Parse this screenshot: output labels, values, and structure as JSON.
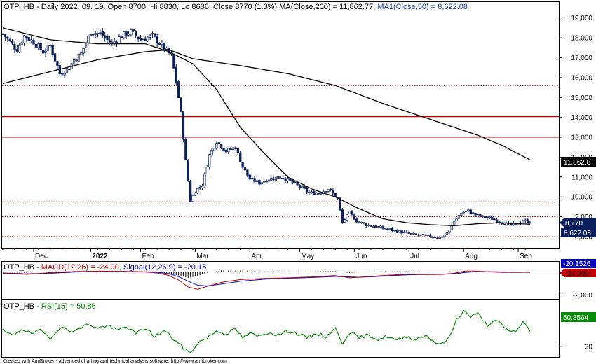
{
  "chart_data": {
    "type": "line",
    "main": {
      "title_prefix": "OTP_HB - Daily 2022. 09. 19. Open 8700, Hi 8830, Lo 8636, Close 8770 (1.3%) ",
      "title_ma200": "MA(Close,200) = 11,862.77, ",
      "title_ma50": "MA1(Close,50) = 8,622.08",
      "y_range": [
        7400,
        19800
      ],
      "y_ticks": [
        {
          "v": 19000,
          "label": "19,000"
        },
        {
          "v": 18000,
          "label": "18,000"
        },
        {
          "v": 17000,
          "label": "17,000"
        },
        {
          "v": 16000,
          "label": "16,000"
        },
        {
          "v": 15000,
          "label": "15,000"
        },
        {
          "v": 14000,
          "label": "14,000"
        },
        {
          "v": 13000,
          "label": "13,000"
        },
        {
          "v": 12000,
          "label": "12,000"
        },
        {
          "v": 11000,
          "label": "11,000"
        },
        {
          "v": 10000,
          "label": "10,000"
        },
        {
          "v": 9000,
          "label": "9,000"
        },
        {
          "v": 8000,
          "label": "8,000"
        }
      ],
      "x_labels": [
        {
          "i": 13,
          "label": "Dec",
          "bold": false
        },
        {
          "i": 37,
          "label": "2022",
          "bold": true
        },
        {
          "i": 58,
          "label": "Feb",
          "bold": false
        },
        {
          "i": 81,
          "label": "Mar",
          "bold": false
        },
        {
          "i": 104,
          "label": "Apr",
          "bold": false
        },
        {
          "i": 125,
          "label": "May",
          "bold": false
        },
        {
          "i": 148,
          "label": "Jun",
          "bold": false
        },
        {
          "i": 171,
          "label": "Jul",
          "bold": false
        },
        {
          "i": 194,
          "label": "Aug",
          "bold": false
        },
        {
          "i": 217,
          "label": "Sep",
          "bold": false
        }
      ],
      "hlines": [
        {
          "v": 15600,
          "style": "dotted"
        },
        {
          "v": 14050,
          "style": "solid-thick"
        },
        {
          "v": 13000,
          "style": "solid"
        },
        {
          "v": 9750,
          "style": "dotted"
        },
        {
          "v": 9000,
          "style": "dotted"
        },
        {
          "v": 8000,
          "style": "dotted"
        }
      ],
      "last_labels": {
        "ma200": "11,862.8",
        "close": "8,770",
        "ma50": "8,622.08"
      },
      "colors": {
        "candle": "#0a1f5c",
        "ma": "#000000",
        "hline": "#c00000"
      },
      "close_anchors": [
        [
          0,
          18200
        ],
        [
          3,
          17800
        ],
        [
          6,
          17400
        ],
        [
          9,
          18100
        ],
        [
          13,
          17800
        ],
        [
          17,
          17300
        ],
        [
          20,
          17600
        ],
        [
          24,
          16200
        ],
        [
          28,
          16500
        ],
        [
          30,
          16900
        ],
        [
          33,
          17200
        ],
        [
          37,
          18300
        ],
        [
          41,
          18200
        ],
        [
          46,
          17700
        ],
        [
          50,
          18100
        ],
        [
          54,
          18300
        ],
        [
          58,
          17900
        ],
        [
          63,
          18100
        ],
        [
          67,
          17600
        ],
        [
          71,
          17100
        ],
        [
          73,
          15800
        ],
        [
          75,
          14200
        ],
        [
          77,
          11800
        ],
        [
          79,
          9800
        ],
        [
          81,
          10300
        ],
        [
          84,
          10600
        ],
        [
          87,
          12100
        ],
        [
          90,
          12800
        ],
        [
          94,
          12300
        ],
        [
          98,
          12500
        ],
        [
          101,
          11500
        ],
        [
          104,
          10900
        ],
        [
          108,
          10700
        ],
        [
          112,
          10900
        ],
        [
          117,
          11000
        ],
        [
          121,
          10800
        ],
        [
          125,
          10500
        ],
        [
          129,
          10200
        ],
        [
          133,
          10200
        ],
        [
          137,
          10400
        ],
        [
          141,
          9900
        ],
        [
          143,
          8700
        ],
        [
          146,
          9200
        ],
        [
          149,
          8800
        ],
        [
          153,
          8600
        ],
        [
          157,
          8500
        ],
        [
          161,
          8400
        ],
        [
          165,
          8300
        ],
        [
          169,
          8200
        ],
        [
          173,
          8100
        ],
        [
          177,
          8050
        ],
        [
          181,
          8000
        ],
        [
          184,
          7950
        ],
        [
          186,
          8100
        ],
        [
          188,
          8300
        ],
        [
          190,
          8800
        ],
        [
          193,
          9200
        ],
        [
          196,
          9300
        ],
        [
          199,
          9100
        ],
        [
          202,
          9000
        ],
        [
          206,
          8900
        ],
        [
          210,
          8700
        ],
        [
          213,
          8600
        ],
        [
          216,
          8600
        ],
        [
          219,
          8800
        ],
        [
          222,
          8770
        ]
      ],
      "ma200_anchors": [
        [
          0,
          15700
        ],
        [
          20,
          16300
        ],
        [
          40,
          16900
        ],
        [
          60,
          17300
        ],
        [
          70,
          17400
        ],
        [
          80,
          16950
        ],
        [
          100,
          16600
        ],
        [
          120,
          16200
        ],
        [
          140,
          15600
        ],
        [
          160,
          14700
        ],
        [
          180,
          13900
        ],
        [
          200,
          13100
        ],
        [
          210,
          12600
        ],
        [
          222,
          11862.77
        ]
      ],
      "ma50_anchors": [
        [
          0,
          18500
        ],
        [
          20,
          17900
        ],
        [
          40,
          17700
        ],
        [
          60,
          17700
        ],
        [
          70,
          17300
        ],
        [
          80,
          16700
        ],
        [
          90,
          15400
        ],
        [
          100,
          13500
        ],
        [
          110,
          12200
        ],
        [
          120,
          11000
        ],
        [
          130,
          10400
        ],
        [
          140,
          10000
        ],
        [
          150,
          9400
        ],
        [
          160,
          8900
        ],
        [
          170,
          8700
        ],
        [
          180,
          8600
        ],
        [
          190,
          8550
        ],
        [
          200,
          8650
        ],
        [
          210,
          8700
        ],
        [
          222,
          8622.08
        ]
      ]
    },
    "macd": {
      "title_prefix": "OTP_HB - ",
      "title_macd": "MACD(12,26) = -24.00, ",
      "title_signal": "Signal(12,26,9) = -20.15",
      "y_range": [
        -2400,
        900
      ],
      "y_ticks": [
        {
          "v": -2000,
          "label": "-2,000"
        }
      ],
      "last_labels": {
        "signal": "-20.1526",
        "macd": "-24.000"
      },
      "colors": {
        "macd": "#c00000",
        "signal": "#0000c0",
        "hist": "#000000"
      },
      "macd_anchors": [
        [
          0,
          -100
        ],
        [
          10,
          -200
        ],
        [
          20,
          -50
        ],
        [
          30,
          50
        ],
        [
          40,
          80
        ],
        [
          50,
          60
        ],
        [
          60,
          10
        ],
        [
          65,
          -80
        ],
        [
          70,
          -300
        ],
        [
          74,
          -700
        ],
        [
          78,
          -1300
        ],
        [
          82,
          -1500
        ],
        [
          86,
          -1250
        ],
        [
          92,
          -900
        ],
        [
          100,
          -650
        ],
        [
          110,
          -550
        ],
        [
          120,
          -500
        ],
        [
          130,
          -420
        ],
        [
          140,
          -300
        ],
        [
          146,
          -500
        ],
        [
          150,
          -450
        ],
        [
          160,
          -300
        ],
        [
          170,
          -180
        ],
        [
          180,
          -220
        ],
        [
          185,
          -200
        ],
        [
          190,
          -100
        ],
        [
          195,
          100
        ],
        [
          200,
          80
        ],
        [
          210,
          -30
        ],
        [
          222,
          -24
        ]
      ],
      "signal_anchors": [
        [
          0,
          -80
        ],
        [
          10,
          -150
        ],
        [
          20,
          -100
        ],
        [
          30,
          0
        ],
        [
          40,
          60
        ],
        [
          50,
          60
        ],
        [
          60,
          30
        ],
        [
          65,
          -20
        ],
        [
          70,
          -150
        ],
        [
          74,
          -400
        ],
        [
          78,
          -800
        ],
        [
          82,
          -1150
        ],
        [
          86,
          -1200
        ],
        [
          92,
          -1050
        ],
        [
          100,
          -800
        ],
        [
          110,
          -620
        ],
        [
          120,
          -540
        ],
        [
          130,
          -470
        ],
        [
          140,
          -380
        ],
        [
          146,
          -420
        ],
        [
          150,
          -450
        ],
        [
          160,
          -360
        ],
        [
          170,
          -240
        ],
        [
          180,
          -200
        ],
        [
          190,
          -160
        ],
        [
          195,
          -20
        ],
        [
          200,
          40
        ],
        [
          210,
          20
        ],
        [
          222,
          -20.15
        ]
      ]
    },
    "rsi": {
      "title_prefix": "OTP_HB - ",
      "title_rsi": "RSI(15) = 50.86",
      "y_range": [
        15,
        95
      ],
      "y_ticks": [
        {
          "v": 30,
          "label": "30"
        }
      ],
      "last_label": "50.8564",
      "colors": {
        "rsi": "#0a8a0a"
      },
      "rsi_anchors": [
        [
          0,
          52
        ],
        [
          4,
          45
        ],
        [
          8,
          55
        ],
        [
          12,
          48
        ],
        [
          16,
          52
        ],
        [
          20,
          42
        ],
        [
          24,
          57
        ],
        [
          28,
          52
        ],
        [
          32,
          54
        ],
        [
          36,
          62
        ],
        [
          40,
          55
        ],
        [
          44,
          60
        ],
        [
          48,
          52
        ],
        [
          52,
          58
        ],
        [
          56,
          48
        ],
        [
          60,
          56
        ],
        [
          64,
          44
        ],
        [
          68,
          52
        ],
        [
          72,
          40
        ],
        [
          76,
          28
        ],
        [
          79,
          20
        ],
        [
          82,
          35
        ],
        [
          86,
          42
        ],
        [
          90,
          52
        ],
        [
          94,
          48
        ],
        [
          98,
          54
        ],
        [
          101,
          42
        ],
        [
          104,
          48
        ],
        [
          108,
          44
        ],
        [
          112,
          50
        ],
        [
          116,
          46
        ],
        [
          120,
          52
        ],
        [
          124,
          48
        ],
        [
          128,
          42
        ],
        [
          132,
          48
        ],
        [
          136,
          44
        ],
        [
          140,
          55
        ],
        [
          143,
          35
        ],
        [
          146,
          50
        ],
        [
          150,
          42
        ],
        [
          154,
          46
        ],
        [
          158,
          40
        ],
        [
          162,
          44
        ],
        [
          166,
          38
        ],
        [
          170,
          44
        ],
        [
          174,
          40
        ],
        [
          178,
          46
        ],
        [
          182,
          36
        ],
        [
          185,
          33
        ],
        [
          188,
          42
        ],
        [
          191,
          68
        ],
        [
          194,
          80
        ],
        [
          197,
          72
        ],
        [
          200,
          76
        ],
        [
          204,
          60
        ],
        [
          208,
          66
        ],
        [
          212,
          54
        ],
        [
          216,
          50
        ],
        [
          219,
          66
        ],
        [
          222,
          51
        ]
      ]
    },
    "footer": "Created with AmiBroker - advanced charting and technical analysis software. http://www.amibroker.com"
  }
}
